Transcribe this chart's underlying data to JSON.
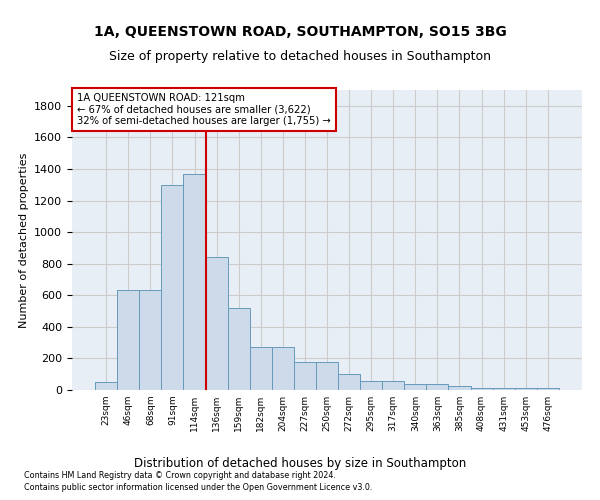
{
  "title": "1A, QUEENSTOWN ROAD, SOUTHAMPTON, SO15 3BG",
  "subtitle": "Size of property relative to detached houses in Southampton",
  "xlabel": "Distribution of detached houses by size in Southampton",
  "ylabel": "Number of detached properties",
  "bar_labels": [
    "23sqm",
    "46sqm",
    "68sqm",
    "91sqm",
    "114sqm",
    "136sqm",
    "159sqm",
    "182sqm",
    "204sqm",
    "227sqm",
    "250sqm",
    "272sqm",
    "295sqm",
    "317sqm",
    "340sqm",
    "363sqm",
    "385sqm",
    "408sqm",
    "431sqm",
    "453sqm",
    "476sqm"
  ],
  "bar_color": "#ccdaea",
  "bar_edge_color": "#6699bb",
  "bar_heights": [
    50,
    635,
    635,
    1300,
    1370,
    840,
    520,
    275,
    275,
    175,
    175,
    100,
    55,
    55,
    35,
    35,
    25,
    15,
    10,
    10,
    15
  ],
  "vline_color": "#cc0000",
  "annotation_title": "1A QUEENSTOWN ROAD: 121sqm",
  "annotation_line2": "← 67% of detached houses are smaller (3,622)",
  "annotation_line3": "32% of semi-detached houses are larger (1,755) →",
  "annotation_box_color": "#cc0000",
  "annotation_box_bg": "#ffffff",
  "ylim": [
    0,
    1900
  ],
  "yticks": [
    0,
    200,
    400,
    600,
    800,
    1000,
    1200,
    1400,
    1600,
    1800
  ],
  "grid_color": "#cccccc",
  "bg_color": "#e8eef5",
  "footer1": "Contains HM Land Registry data © Crown copyright and database right 2024.",
  "footer2": "Contains public sector information licensed under the Open Government Licence v3.0.",
  "title_fontsize": 10,
  "subtitle_fontsize": 9
}
